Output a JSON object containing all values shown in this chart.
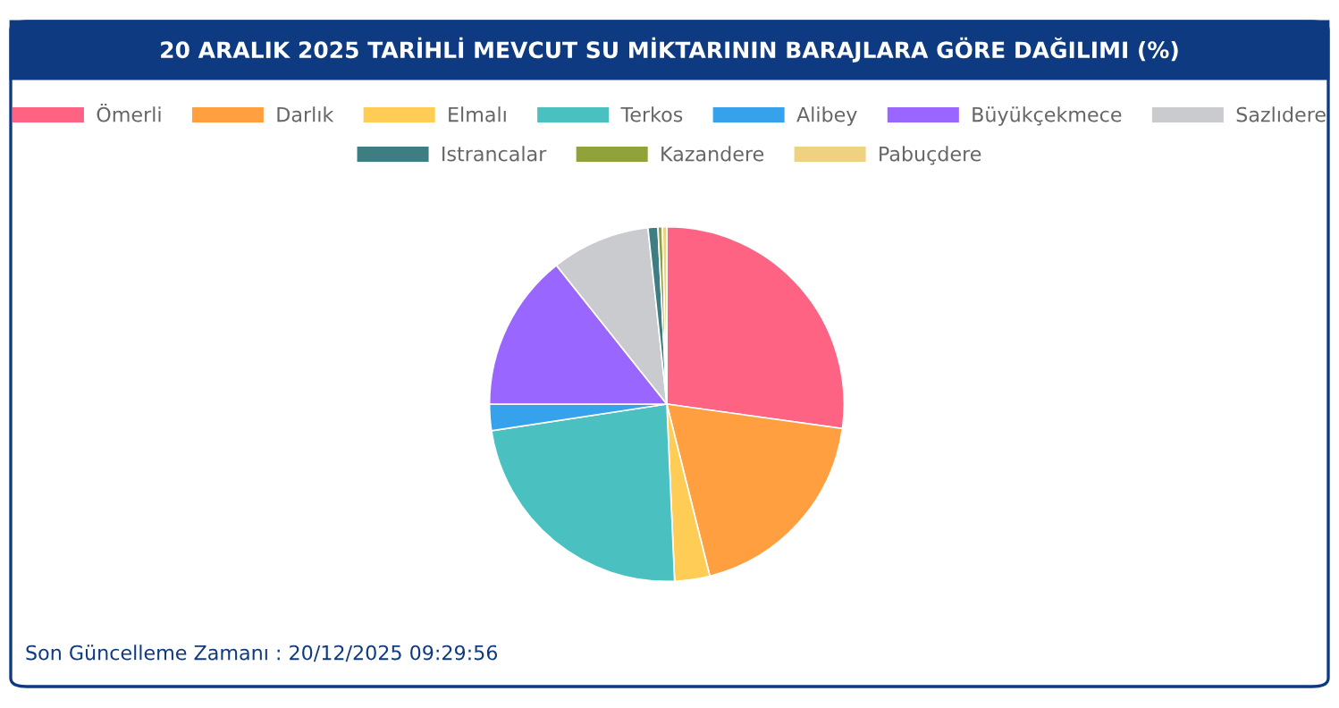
{
  "chart_data": {
    "type": "pie",
    "title": "20 ARALIK 2025 TARİHLİ MEVCUT SU MİKTARININ BARAJLARA GÖRE DAĞILIMI (%)",
    "categories": [
      "Ömerli",
      "Darlık",
      "Elmalı",
      "Terkos",
      "Alibey",
      "Büyükçekmece",
      "Sazlıdere",
      "Istrancalar",
      "Kazandere",
      "Pabuçdere"
    ],
    "values": [
      27.2,
      18.9,
      3.2,
      23.3,
      2.4,
      14.3,
      9.0,
      0.9,
      0.4,
      0.4
    ],
    "colors": [
      "#ff6384",
      "#ff9f40",
      "#ffcd56",
      "#4bc0c0",
      "#36a2eb",
      "#9966ff",
      "#c9cbcf",
      "#3e7d82",
      "#8fa33a",
      "#eed27f"
    ],
    "legend": "top",
    "annotations": [
      "Son Güncelleme Zamanı : 20/12/2025 09:29:56"
    ]
  }
}
